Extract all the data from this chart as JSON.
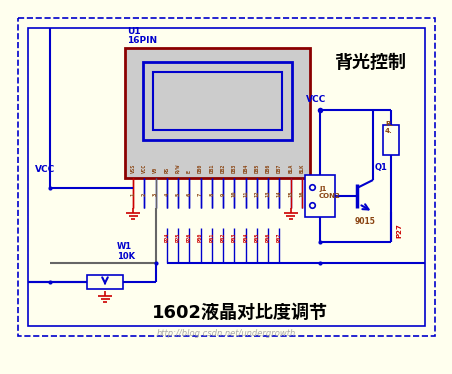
{
  "bg_color": "#FFFFEE",
  "outer_border_color": "#0000CC",
  "lcd_border_color": "#8B0000",
  "lcd_bg_color": "#CCCCCC",
  "lcd_screen_border": "#0000CC",
  "lcd_screen_color": "#CCCCCC",
  "wire_color": "#0000CC",
  "red_wire_color": "#CC0000",
  "gray_wire_color": "#666666",
  "text_color": "#8B4513",
  "blue_text_color": "#0000CC",
  "title_color": "#000000",
  "watermark_color": "#AAAAAA",
  "title": "U1",
  "subtitle": "16PIN",
  "lcd_pins": [
    "VSS",
    "VCC",
    "V0",
    "RS",
    "R/W",
    "E",
    "DB0",
    "DB1",
    "DB2",
    "DB3",
    "DB4",
    "DB5",
    "DB6",
    "DB7",
    "BLA",
    "BLK"
  ],
  "pin_nums": [
    "1",
    "2",
    "3",
    "4",
    "5",
    "6",
    "7",
    "8",
    "9",
    "10",
    "11",
    "12",
    "13",
    "14",
    "15",
    "16"
  ],
  "port_labels": [
    "P24",
    "P25",
    "P26",
    "P00",
    "P01",
    "P02",
    "P03",
    "P04",
    "P05",
    "P06",
    "P07"
  ],
  "vcc_label": "VCC",
  "backlight_title": "背光控制",
  "j1_label": "J1\nCON2",
  "q1_label": "Q1",
  "transistor_model": "9015",
  "r_label": "R.\n4.",
  "p27_label": "P27",
  "w1_label": "W1\n10K",
  "bottom_title": "1602液晶对比度调节",
  "watermark": "http://blog.csdn.net/undergrowth"
}
